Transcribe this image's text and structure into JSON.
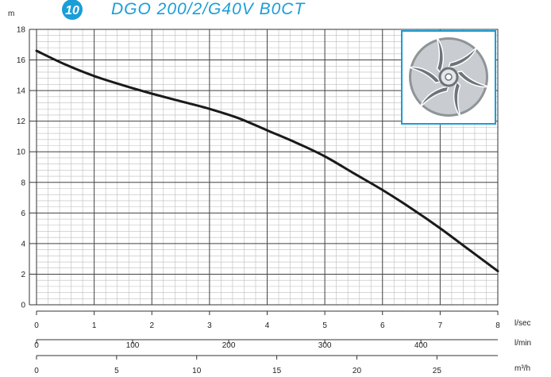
{
  "header": {
    "badge": "10",
    "title": "DGO 200/2/G40V B0CT",
    "y_unit": "m"
  },
  "impeller": {
    "icon": "impeller-icon",
    "frame_color": "#1a9ed8"
  },
  "chart_data": {
    "type": "line",
    "title": "DGO 200/2/G40V B0CT",
    "ylabel": "m",
    "ylim": [
      0,
      18
    ],
    "yticks": [
      0,
      2,
      4,
      6,
      8,
      10,
      12,
      14,
      16,
      18
    ],
    "grid": true,
    "axes": [
      {
        "unit": "l/sec",
        "range": [
          0,
          8
        ],
        "ticks": [
          0,
          1,
          2,
          3,
          4,
          5,
          6,
          7,
          8
        ]
      },
      {
        "unit": "l/min",
        "range": [
          0,
          480
        ],
        "ticks": [
          0,
          100,
          200,
          300,
          400
        ]
      },
      {
        "unit": "m³/h",
        "range": [
          0,
          28.8
        ],
        "ticks": [
          0,
          5,
          10,
          15,
          20,
          25
        ]
      }
    ],
    "series": [
      {
        "color": "#1a1a1a",
        "x": [
          0,
          0.5,
          1,
          1.5,
          2,
          2.5,
          3,
          3.5,
          4,
          4.5,
          5,
          5.5,
          6,
          6.5,
          7,
          7.5,
          8
        ],
        "y": [
          16.6,
          15.7,
          14.95,
          14.35,
          13.8,
          13.3,
          12.8,
          12.2,
          11.4,
          10.6,
          9.7,
          8.6,
          7.5,
          6.3,
          5.0,
          3.6,
          2.2
        ]
      }
    ]
  }
}
